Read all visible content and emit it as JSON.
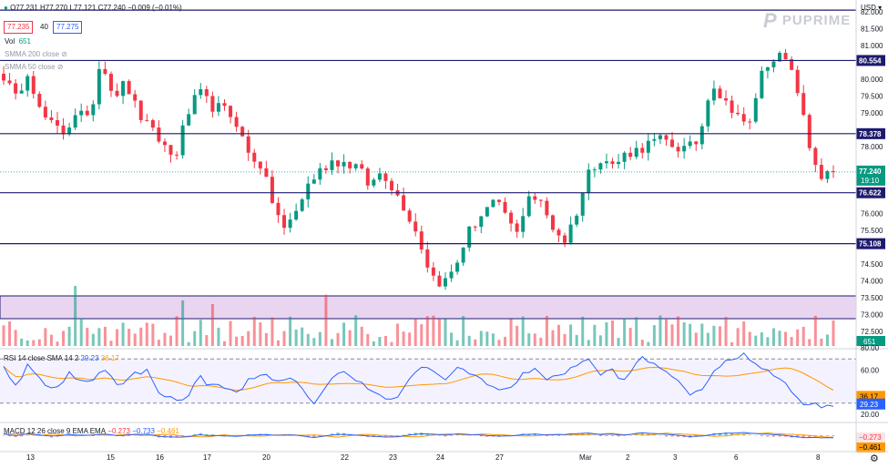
{
  "header": {
    "ohlc": "O77.231 H77.270 L77.121 C77.240 −0.009 (−0.01%)",
    "bid": "77.235",
    "spread": "40",
    "ask": "77.275",
    "vol_label": "Vol",
    "vol_value": "651",
    "smma200": "SMMA 200 close",
    "smma50": "SMMA 50 close",
    "currency": "USD",
    "logo": "PUPRIME"
  },
  "colors": {
    "up": "#089981",
    "down": "#f23645",
    "hline": "#1e1b6e",
    "rsi": "#2962ff",
    "signal": "#ff9800",
    "zone": "#e9d5f0"
  },
  "price_axis": {
    "ticks": [
      "82.000",
      "81.500",
      "81.000",
      "80.500",
      "80.000",
      "79.500",
      "79.000",
      "78.500",
      "78.000",
      "77.500",
      "77.000",
      "76.500",
      "76.000",
      "75.500",
      "75.000",
      "74.500",
      "74.000",
      "73.500",
      "73.000",
      "72.500"
    ],
    "ymin": 72.5,
    "ymax": 82.0
  },
  "levels": [
    {
      "label": "80.554",
      "value": 80.554
    },
    {
      "label": "78.378",
      "value": 78.378
    },
    {
      "label": "76.622",
      "value": 76.622
    },
    {
      "label": "75.108",
      "value": 75.108
    }
  ],
  "top_line": 82.05,
  "last_price": {
    "label": "77.240",
    "countdown": "19:10",
    "value": 77.24
  },
  "volume_badge": "651",
  "x_axis": [
    "13",
    "15",
    "16",
    "17",
    "20",
    "22",
    "23",
    "24",
    "27",
    "Mar",
    "2",
    "3",
    "6",
    "8"
  ],
  "chart_data": {
    "type": "candlestick",
    "series_name": "",
    "path_keypoints": [
      80.1,
      79.4,
      80.3,
      79.0,
      78.6,
      78.4,
      79.1,
      78.7,
      80.7,
      79.5,
      79.9,
      79.0,
      78.5,
      78.1,
      77.6,
      78.9,
      79.6,
      79.2,
      79.1,
      78.8,
      77.8,
      77.5,
      76.4,
      75.5,
      76.1,
      76.9,
      77.3,
      77.6,
      77.5,
      77.4,
      76.8,
      77.3,
      76.7,
      76.1,
      75.3,
      74.2,
      73.9,
      74.4,
      75.4,
      75.9,
      76.3,
      76.1,
      75.3,
      76.6,
      76.3,
      75.6,
      75.2,
      76.1,
      77.3,
      77.7,
      77.4,
      77.8,
      77.9,
      78.1,
      78.2,
      78.0,
      77.9,
      78.2,
      80.0,
      79.3,
      79.1,
      78.4,
      80.1,
      80.7,
      80.6,
      79.8,
      78.0,
      77.1,
      77.2
    ],
    "rsi": {
      "title": "RSI 14 close SMA 14 2",
      "value_label": "29.23",
      "ma_label": "36.17",
      "ticks": [
        "80.00",
        "60.00",
        "20.00"
      ],
      "path_keypoints": [
        63,
        46,
        67,
        47,
        41,
        57,
        49,
        53,
        62,
        44,
        56,
        60,
        41,
        33,
        32,
        55,
        45,
        46,
        38,
        54,
        56,
        48,
        52,
        44,
        30,
        48,
        58,
        54,
        46,
        36,
        32,
        44,
        64,
        58,
        52,
        62,
        56,
        52,
        42,
        42,
        55,
        63,
        50,
        56,
        64,
        70,
        56,
        60,
        48,
        72,
        66,
        60,
        52,
        34,
        46,
        62,
        68,
        74,
        66,
        60,
        52,
        36,
        29,
        28,
        29
      ]
    },
    "macd": {
      "title": "MACD 12 26 close 9 EMA EMA",
      "v1": "−0.273",
      "v2": "−0.733",
      "v3": "−0.461",
      "scale_labels": [
        "−0.273",
        "−0.461"
      ]
    }
  }
}
